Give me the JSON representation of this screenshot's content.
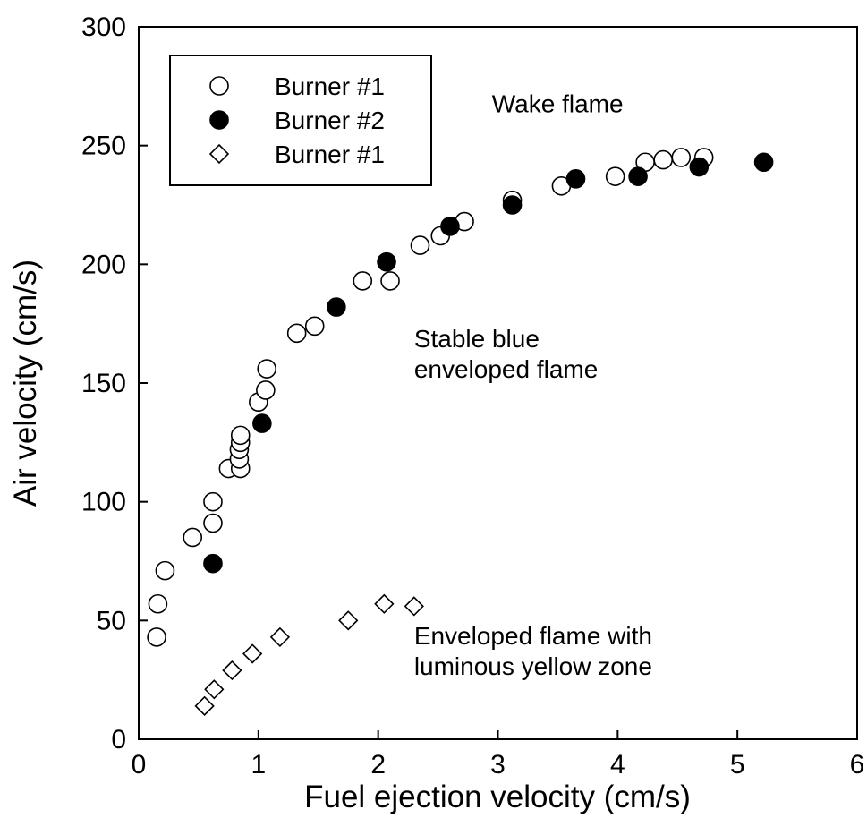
{
  "chart_data": {
    "type": "scatter",
    "xlabel": "Fuel ejection velocity (cm/s)",
    "ylabel": "Air velocity (cm/s)",
    "xlim": [
      0,
      6
    ],
    "ylim": [
      0,
      300
    ],
    "x_ticks": [
      0,
      1,
      2,
      3,
      4,
      5,
      6
    ],
    "y_ticks": [
      0,
      50,
      100,
      150,
      200,
      250,
      300
    ],
    "grid": false,
    "legend_position": "top-left",
    "series": [
      {
        "name": "Burner #1",
        "marker": "open-circle",
        "points": [
          [
            0.15,
            43
          ],
          [
            0.16,
            57
          ],
          [
            0.22,
            71
          ],
          [
            0.45,
            85
          ],
          [
            0.62,
            91
          ],
          [
            0.62,
            100
          ],
          [
            0.75,
            114
          ],
          [
            0.85,
            114
          ],
          [
            0.84,
            118
          ],
          [
            0.84,
            122
          ],
          [
            0.85,
            125
          ],
          [
            0.85,
            128
          ],
          [
            1.0,
            142
          ],
          [
            1.06,
            147
          ],
          [
            1.07,
            156
          ],
          [
            1.32,
            171
          ],
          [
            1.47,
            174
          ],
          [
            1.87,
            193
          ],
          [
            2.1,
            193
          ],
          [
            2.35,
            208
          ],
          [
            2.52,
            212
          ],
          [
            2.72,
            218
          ],
          [
            3.12,
            227
          ],
          [
            3.53,
            233
          ],
          [
            3.98,
            237
          ],
          [
            4.23,
            243
          ],
          [
            4.38,
            244
          ],
          [
            4.53,
            245
          ],
          [
            4.72,
            245
          ]
        ]
      },
      {
        "name": "Burner #2",
        "marker": "filled-circle",
        "points": [
          [
            0.62,
            74
          ],
          [
            1.03,
            133
          ],
          [
            1.65,
            182
          ],
          [
            2.07,
            201
          ],
          [
            2.6,
            216
          ],
          [
            3.12,
            225
          ],
          [
            3.65,
            236
          ],
          [
            4.17,
            237
          ],
          [
            4.68,
            241
          ],
          [
            5.22,
            243
          ]
        ]
      },
      {
        "name": "Burner #1",
        "marker": "open-diamond",
        "points": [
          [
            0.55,
            14
          ],
          [
            0.63,
            21
          ],
          [
            0.78,
            29
          ],
          [
            0.95,
            36
          ],
          [
            1.18,
            43
          ],
          [
            1.75,
            50
          ],
          [
            2.05,
            57
          ],
          [
            2.3,
            56
          ]
        ]
      }
    ],
    "annotations": [
      {
        "lines": [
          "Wake flame"
        ],
        "x": 2.95,
        "y": 264
      },
      {
        "lines": [
          "Stable blue",
          "enveloped flame"
        ],
        "x": 2.3,
        "y": 165
      },
      {
        "lines": [
          "Enveloped flame with",
          "luminous yellow zone"
        ],
        "x": 2.3,
        "y": 40
      }
    ]
  }
}
